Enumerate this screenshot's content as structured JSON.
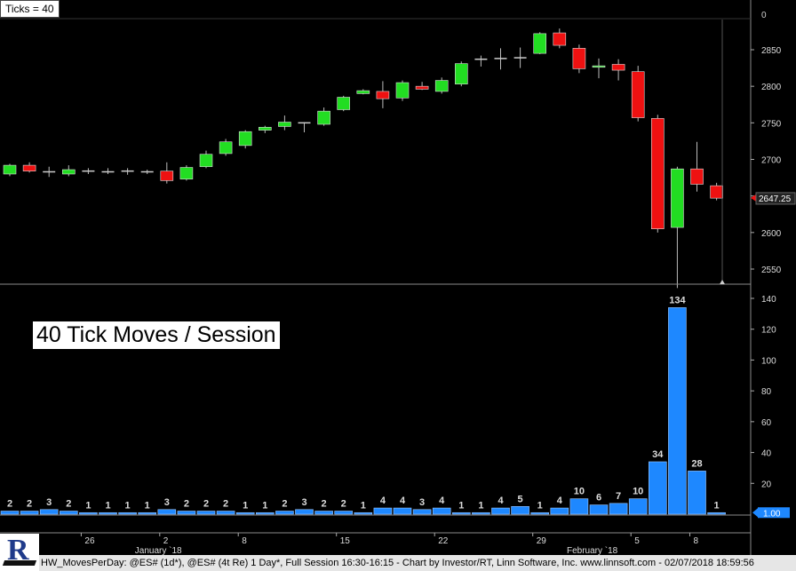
{
  "header": {
    "ticks_label": "Ticks = 40"
  },
  "panel_title": "40 Tick Moves / Session",
  "footer": {
    "text": "HW_MovesPerDay: @ES# (1d*), @ES# (4t Re) 1 Day*, Full Session 16:30-16:15 - Chart by Investor/RT, Linn Software, Inc. www.linnsoft.com - 02/07/2018 18:59:56"
  },
  "colors": {
    "up": "#22dd22",
    "down": "#ee1111",
    "doji": "#cccccc",
    "bar": "#1e88ff",
    "price_marker": "#ee1111",
    "value_marker": "#1e88ff"
  },
  "chart_data": [
    {
      "type": "candlestick",
      "title": "",
      "last_price_label": "2647.25",
      "ylim": [
        2510,
        2880
      ],
      "y_ticks": [
        2550,
        2600,
        2650,
        2700,
        2750,
        2800,
        2850
      ],
      "x_labels": [
        {
          "index": 4,
          "label": "26"
        },
        {
          "index": 8,
          "label": "2"
        },
        {
          "index": 8,
          "label": "January `18"
        },
        {
          "index": 12,
          "label": "8"
        },
        {
          "index": 17,
          "label": "15"
        },
        {
          "index": 22,
          "label": "22"
        },
        {
          "index": 27,
          "label": "29"
        },
        {
          "index": 30,
          "label": "February `18"
        },
        {
          "index": 32,
          "label": "5"
        },
        {
          "index": 35,
          "label": "8"
        }
      ],
      "ohlc": [
        {
          "o": 2680,
          "h": 2694,
          "l": 2677,
          "c": 2692
        },
        {
          "o": 2692,
          "h": 2696,
          "l": 2682,
          "c": 2684
        },
        {
          "o": 2683,
          "h": 2690,
          "l": 2676,
          "c": 2683
        },
        {
          "o": 2680,
          "h": 2692,
          "l": 2677,
          "c": 2686
        },
        {
          "o": 2684,
          "h": 2688,
          "l": 2680,
          "c": 2684
        },
        {
          "o": 2684,
          "h": 2688,
          "l": 2680,
          "c": 2683
        },
        {
          "o": 2683,
          "h": 2688,
          "l": 2679,
          "c": 2684
        },
        {
          "o": 2683,
          "h": 2686,
          "l": 2680,
          "c": 2683
        },
        {
          "o": 2684,
          "h": 2696,
          "l": 2667,
          "c": 2671
        },
        {
          "o": 2673,
          "h": 2692,
          "l": 2671,
          "c": 2689
        },
        {
          "o": 2690,
          "h": 2712,
          "l": 2688,
          "c": 2707
        },
        {
          "o": 2708,
          "h": 2728,
          "l": 2705,
          "c": 2724
        },
        {
          "o": 2719,
          "h": 2740,
          "l": 2715,
          "c": 2738
        },
        {
          "o": 2740,
          "h": 2746,
          "l": 2736,
          "c": 2744
        },
        {
          "o": 2745,
          "h": 2760,
          "l": 2740,
          "c": 2751
        },
        {
          "o": 2750,
          "h": 2751,
          "l": 2737,
          "c": 2750
        },
        {
          "o": 2748,
          "h": 2771,
          "l": 2746,
          "c": 2766
        },
        {
          "o": 2768,
          "h": 2787,
          "l": 2766,
          "c": 2785
        },
        {
          "o": 2790,
          "h": 2796,
          "l": 2789,
          "c": 2794
        },
        {
          "o": 2793,
          "h": 2807,
          "l": 2770,
          "c": 2783
        },
        {
          "o": 2784,
          "h": 2808,
          "l": 2780,
          "c": 2805
        },
        {
          "o": 2800,
          "h": 2806,
          "l": 2795,
          "c": 2796
        },
        {
          "o": 2793,
          "h": 2812,
          "l": 2790,
          "c": 2808
        },
        {
          "o": 2803,
          "h": 2834,
          "l": 2800,
          "c": 2831
        },
        {
          "o": 2836,
          "h": 2842,
          "l": 2827,
          "c": 2837
        },
        {
          "o": 2838,
          "h": 2852,
          "l": 2823,
          "c": 2838
        },
        {
          "o": 2838,
          "h": 2853,
          "l": 2825,
          "c": 2839
        },
        {
          "o": 2845,
          "h": 2874,
          "l": 2844,
          "c": 2872
        },
        {
          "o": 2873,
          "h": 2879,
          "l": 2852,
          "c": 2856
        },
        {
          "o": 2852,
          "h": 2857,
          "l": 2818,
          "c": 2824
        },
        {
          "o": 2826,
          "h": 2838,
          "l": 2811,
          "c": 2828
        },
        {
          "o": 2830,
          "h": 2837,
          "l": 2808,
          "c": 2822
        },
        {
          "o": 2820,
          "h": 2828,
          "l": 2752,
          "c": 2757
        },
        {
          "o": 2756,
          "h": 2761,
          "l": 2600,
          "c": 2605
        },
        {
          "o": 2607,
          "h": 2690,
          "l": 2524,
          "c": 2687
        },
        {
          "o": 2687,
          "h": 2724,
          "l": 2656,
          "c": 2666
        },
        {
          "o": 2664,
          "h": 2668,
          "l": 2644,
          "c": 2647
        }
      ]
    },
    {
      "type": "bar",
      "title": "40 Tick Moves / Session",
      "ylim": [
        0,
        148
      ],
      "y_ticks": [
        20,
        40,
        60,
        80,
        100,
        120,
        140
      ],
      "values": [
        2,
        2,
        3,
        2,
        1,
        1,
        1,
        1,
        3,
        2,
        2,
        2,
        1,
        1,
        2,
        3,
        2,
        2,
        1,
        4,
        4,
        3,
        4,
        1,
        1,
        4,
        5,
        1,
        4,
        10,
        6,
        7,
        10,
        34,
        134,
        28,
        1
      ],
      "last_value_label": "1.00"
    }
  ]
}
